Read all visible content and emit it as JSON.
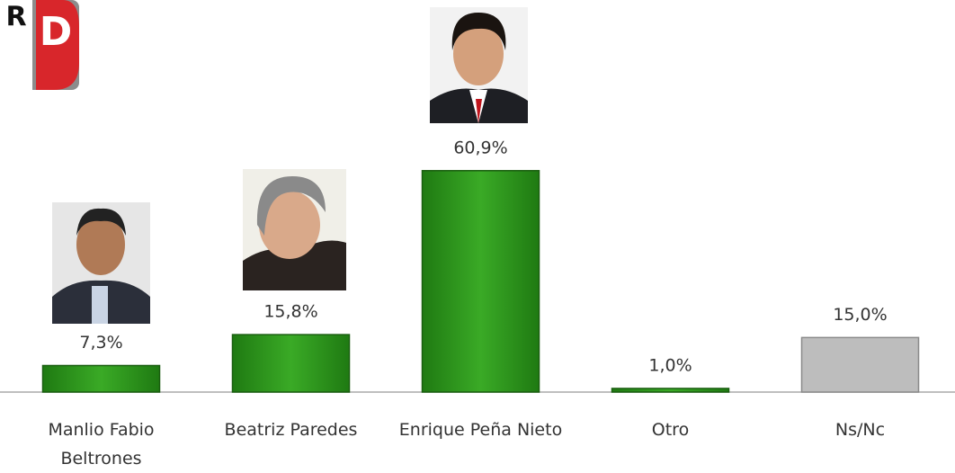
{
  "chart_data": {
    "type": "bar",
    "logo": {
      "left": "R",
      "right": "D"
    },
    "categories": [
      "Manlio Fabio Beltrones",
      "Beatriz Paredes",
      "Enrique Peña Nieto",
      "Otro",
      "Ns/Nc"
    ],
    "values": [
      7.3,
      15.8,
      60.9,
      1.0,
      15.0
    ],
    "value_labels": [
      "7,3%",
      "15,8%",
      "60,9%",
      "1,0%",
      "15,0%"
    ],
    "colors": [
      "#2e9a1c",
      "#2e9a1c",
      "#2e9a1c",
      "#2e9a1c",
      "#bdbdbd"
    ],
    "ylim": [
      0,
      70
    ]
  }
}
